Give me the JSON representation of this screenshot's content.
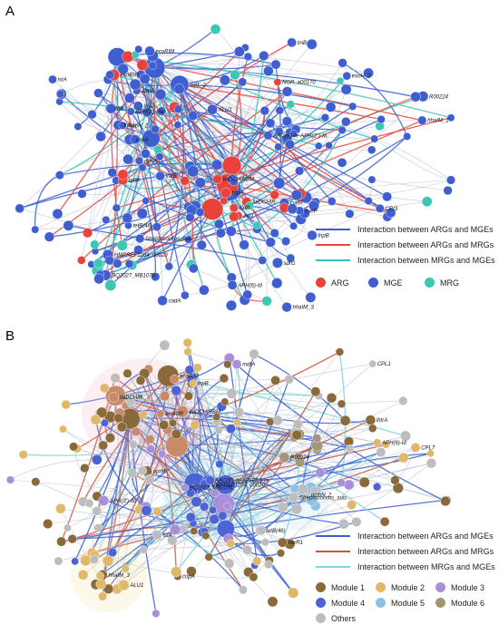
{
  "panel_a": {
    "label": "A",
    "legend": {
      "edges": [
        {
          "label": "Interaction between ARGs and MGEs",
          "color": "#3a5fcd"
        },
        {
          "label": "Interaction between ARGs and MRGs",
          "color": "#e8453c"
        },
        {
          "label": "Interaction between MRGs and MGEs",
          "color": "#2ec4b6"
        }
      ],
      "nodes": [
        {
          "label": "ARG",
          "color": "#e8423a"
        },
        {
          "label": "MGE",
          "color": "#3f5fd0"
        },
        {
          "label": "MRG",
          "color": "#3cc7b5"
        }
      ]
    },
    "node_labels": [
      "sul1_2",
      "ecoRIM",
      "tnpA",
      "ecoRIR",
      "lsdP",
      "IlaDCHIR",
      "IlaDCHIRBM",
      "AAC(6')-Ie-APH(2'')-Ia",
      "cueR",
      "cueP",
      "HMPREF1204_00020",
      "BQ2027_MB1076;",
      "mobN_2",
      "R00224",
      "NGR_a00170",
      "CRI3",
      "exoH_2",
      "tnpB",
      "Streptococcus_suis",
      "hhaIM_1",
      "hhaIM_3",
      "tniB",
      "ALU1",
      "dpriA",
      "cadA",
      "rpIM",
      "APH(3')-IIIa",
      "APH(6)-Id",
      "tetB(46)",
      "vatB",
      "istA",
      "sdrG",
      "zitB",
      "copA",
      "abdA",
      "lhtrA",
      "intI1",
      "bfpA"
    ]
  },
  "panel_b": {
    "label": "B",
    "legend": {
      "edges": [
        {
          "label": "Interaction between ARGs and MGEs",
          "color": "#3a5fcd"
        },
        {
          "label": "Interaction between ARGs and MRGs",
          "color": "#c9553b"
        },
        {
          "label": "Interaction between MRGs and MGEs",
          "color": "#7ed3dc"
        }
      ],
      "modules": [
        {
          "label": "Module 1",
          "color": "#8a6a3a"
        },
        {
          "label": "Module 2",
          "color": "#e0b86a"
        },
        {
          "label": "Module 3",
          "color": "#a98fd9"
        },
        {
          "label": "Module 4",
          "color": "#4c63d4"
        },
        {
          "label": "Module 5",
          "color": "#8fc1e3"
        },
        {
          "label": "Module 6",
          "color": "#a59678"
        },
        {
          "label": "Others",
          "color": "#bdbdbd"
        }
      ]
    },
    "node_labels": [
      "ecoRIM",
      "ecoRIR",
      "IlaDCHIR",
      "IlaDCHIRBM",
      "AAC(6')-Ie-APH(2'')-Ia",
      "HMPREF1204_00020",
      "BQ2027_MB1076;",
      "R00224",
      "mobN_2",
      "Streptococcus_suis",
      "hhaIM_3",
      "ALU1",
      "tnpB",
      "CPL1",
      "CPL7",
      "APH(6)-Id",
      "APH(3')-IIb",
      "tetB(46)",
      "lhtrA",
      "oprM",
      "istA",
      "mdtA",
      "norR1",
      "copA"
    ]
  }
}
